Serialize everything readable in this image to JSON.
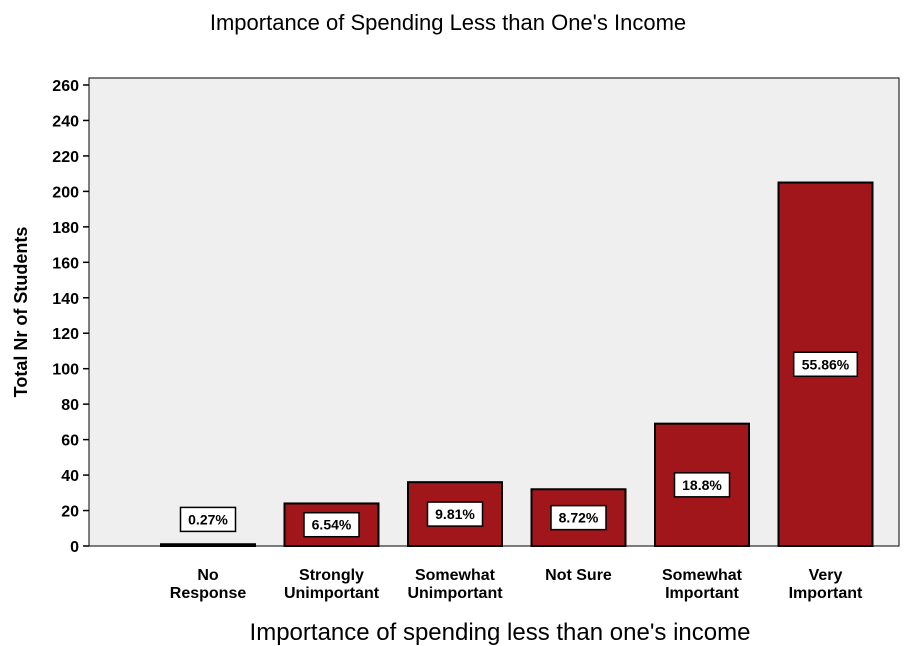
{
  "chart_data": {
    "type": "bar",
    "title": "Importance of Spending Less than One's Income",
    "xlabel": "Importance of spending less than one's income",
    "ylabel": "Total Nr of Students",
    "categories": [
      [
        "No",
        "Response"
      ],
      [
        "Strongly",
        "Unimportant"
      ],
      [
        "Somewhat",
        "Unimportant"
      ],
      [
        "Not Sure"
      ],
      [
        "Somewhat",
        "Important"
      ],
      [
        "Very",
        "Important"
      ]
    ],
    "values": [
      1,
      24,
      36,
      32,
      69,
      205
    ],
    "data_labels": [
      "0.27%",
      "6.54%",
      "9.81%",
      "8.72%",
      "18.8%",
      "55.86%"
    ],
    "ylim": [
      0,
      260
    ],
    "yticks": [
      0,
      20,
      40,
      60,
      80,
      100,
      120,
      140,
      160,
      180,
      200,
      220,
      240,
      260
    ],
    "grid": false,
    "colors": {
      "bar": "#a0161b",
      "plot_background": "#efefef",
      "label_box": "#ffffff"
    }
  }
}
